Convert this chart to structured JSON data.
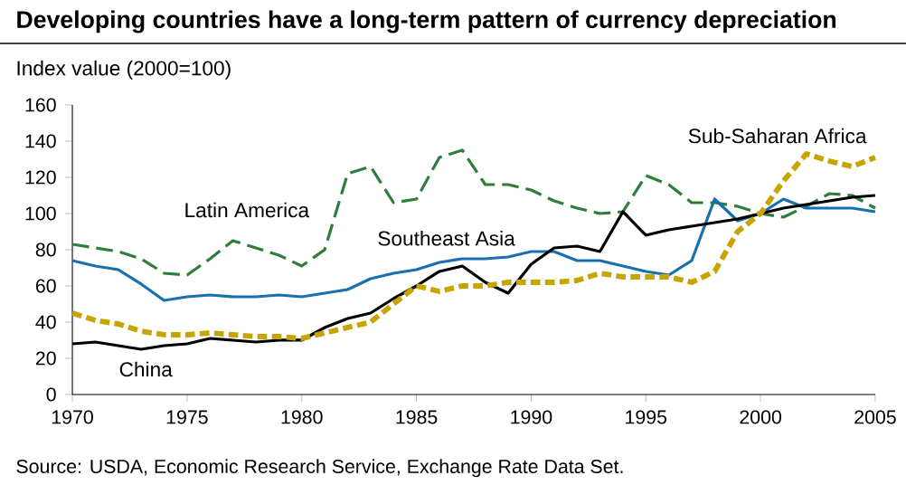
{
  "chart_data": {
    "type": "line",
    "title": "Developing countries have a long-term pattern of currency depreciation",
    "ylabel": "Index value (2000=100)",
    "x": [
      1970,
      1971,
      1972,
      1973,
      1974,
      1975,
      1976,
      1977,
      1978,
      1979,
      1980,
      1981,
      1982,
      1983,
      1984,
      1985,
      1986,
      1987,
      1988,
      1989,
      1990,
      1991,
      1992,
      1993,
      1994,
      1995,
      1996,
      1997,
      1998,
      1999,
      2000,
      2001,
      2002,
      2003,
      2004,
      2005
    ],
    "xlim": [
      1970,
      2005
    ],
    "xticks": [
      1970,
      1975,
      1980,
      1985,
      1990,
      1995,
      2000,
      2005
    ],
    "ylim": [
      0,
      160
    ],
    "yticks": [
      0,
      20,
      40,
      60,
      80,
      100,
      120,
      140,
      160
    ],
    "grid": false,
    "legend": false,
    "series": [
      {
        "name": "Latin America",
        "color": "#2e7d3a",
        "line_style": "dashed",
        "values": [
          83,
          81,
          79,
          75,
          67,
          66,
          75,
          85,
          81,
          77,
          71,
          80,
          122,
          126,
          106,
          108,
          131,
          135,
          116,
          116,
          113,
          107,
          103,
          100,
          101,
          121,
          116,
          106,
          106,
          104,
          100,
          98,
          104,
          111,
          110,
          103
        ]
      },
      {
        "name": "Southeast Asia",
        "color": "#1a6faf",
        "line_style": "solid",
        "values": [
          74,
          71,
          69,
          61,
          52,
          54,
          55,
          54,
          54,
          55,
          54,
          56,
          58,
          64,
          67,
          69,
          73,
          75,
          75,
          76,
          79,
          79,
          74,
          74,
          71,
          68,
          66,
          74,
          108,
          96,
          100,
          108,
          103,
          103,
          103,
          101
        ]
      },
      {
        "name": "China",
        "color": "#000000",
        "line_style": "solid",
        "values": [
          28,
          29,
          27,
          25,
          27,
          28,
          31,
          30,
          29,
          30,
          30,
          37,
          42,
          45,
          53,
          60,
          68,
          71,
          62,
          56,
          72,
          81,
          82,
          79,
          101,
          88,
          91,
          93,
          95,
          97,
          100,
          103,
          105,
          107,
          109,
          110
        ]
      },
      {
        "name": "Sub-Saharan Africa",
        "color": "#c8a400",
        "line_style": "dashed",
        "values": [
          45,
          41,
          39,
          35,
          33,
          33,
          34,
          33,
          32,
          32,
          31,
          34,
          37,
          40,
          50,
          60,
          57,
          60,
          60,
          62,
          62,
          62,
          63,
          67,
          65,
          65,
          65,
          62,
          68,
          90,
          100,
          118,
          133,
          129,
          126,
          131
        ]
      }
    ],
    "annotations": [
      "Source: USDA, Economic Research Service, Exchange Rate Data Set."
    ]
  }
}
